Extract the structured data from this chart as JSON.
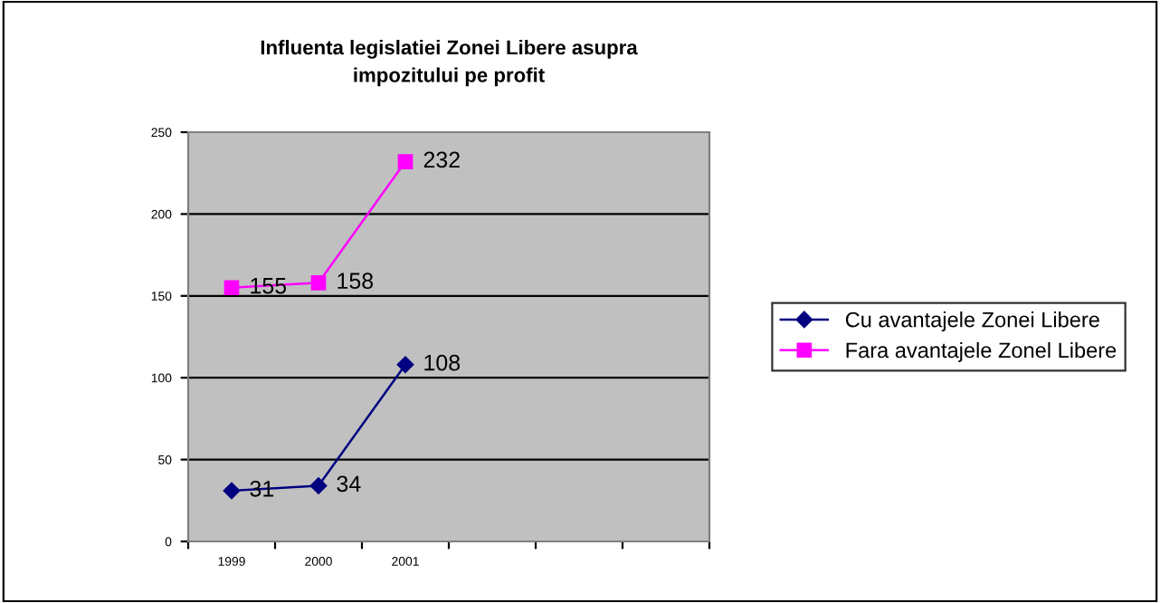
{
  "chart_data": {
    "type": "line",
    "title": "Influenta legislatiei Zonei Libere asupra\nimpozitului pe profit",
    "categories": [
      "1999",
      "2000",
      "2001",
      null,
      null,
      null
    ],
    "series": [
      {
        "name": "Cu avantajele Zonei Libere",
        "color": "#000080",
        "marker": "diamond",
        "values": [
          31,
          34,
          108,
          null,
          null,
          null
        ]
      },
      {
        "name": "Fara avantajele Zonel Libere",
        "color": "#ff00ff",
        "marker": "square",
        "values": [
          155,
          158,
          232,
          null,
          null,
          null
        ]
      }
    ],
    "ylim": [
      0,
      250
    ],
    "yticks": [
      0,
      50,
      100,
      150,
      200,
      250
    ],
    "grid": "y",
    "legend": "right",
    "data_labels": true
  }
}
